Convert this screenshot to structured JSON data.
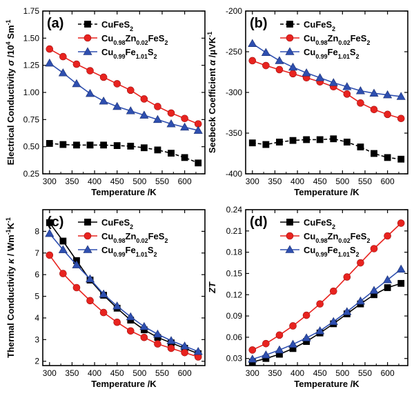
{
  "figure": {
    "xlabel": "Temperature /K",
    "legend_labels": [
      {
        "main": "CuFeS",
        "sub": "2",
        "tail": ""
      },
      {
        "parts": [
          {
            "t": "Cu"
          },
          {
            "t": "0.98",
            "sub": true
          },
          {
            "t": "Zn"
          },
          {
            "t": "0.02",
            "sub": true
          },
          {
            "t": "FeS"
          },
          {
            "t": "2",
            "sub": true
          }
        ]
      },
      {
        "parts": [
          {
            "t": "Cu"
          },
          {
            "t": "0.99",
            "sub": true
          },
          {
            "t": "Fe"
          },
          {
            "t": "1.01",
            "sub": true
          },
          {
            "t": "S"
          },
          {
            "t": "2",
            "sub": true
          }
        ]
      }
    ]
  },
  "chart_data": [
    {
      "type": "line",
      "panel_label": "(a)",
      "title": "",
      "xlabel": "Temperature /K",
      "ylabel_parts": [
        {
          "t": "Electrical Conductivity "
        },
        {
          "t": "σ",
          "italic": true
        },
        {
          "t": " /10"
        },
        {
          "t": "4",
          "sup": true
        },
        {
          "t": " Sm"
        },
        {
          "t": "-1",
          "sup": true
        }
      ],
      "xlim": [
        285,
        645
      ],
      "ylim": [
        0.25,
        1.75
      ],
      "xticks": [
        300,
        350,
        400,
        450,
        500,
        550,
        600,
        650
      ],
      "yticks": [
        0.25,
        0.5,
        0.75,
        1.0,
        1.25,
        1.5,
        1.75
      ],
      "ytick_labels": [
        "0.25",
        "0.50",
        "0.75",
        "1.00",
        "1.25",
        "1.50",
        "1.75"
      ],
      "x": [
        300,
        330,
        360,
        390,
        420,
        450,
        480,
        510,
        540,
        570,
        600,
        630
      ],
      "series": [
        {
          "name": "CuFeS2",
          "marker": "square",
          "color": "#000000",
          "dash": true,
          "values": [
            0.53,
            0.52,
            0.515,
            0.515,
            0.515,
            0.51,
            0.505,
            0.49,
            0.47,
            0.44,
            0.4,
            0.35
          ]
        },
        {
          "name": "Cu0.98Zn0.02FeS2",
          "marker": "circle",
          "color": "#e8231f",
          "dash": false,
          "values": [
            1.4,
            1.33,
            1.26,
            1.2,
            1.14,
            1.08,
            1.02,
            0.94,
            0.87,
            0.81,
            0.76,
            0.71
          ]
        },
        {
          "name": "Cu0.99Fe1.01S2",
          "marker": "triangle",
          "color": "#2e4fb0",
          "dash": false,
          "values": [
            1.27,
            1.18,
            1.08,
            0.99,
            0.92,
            0.87,
            0.83,
            0.79,
            0.75,
            0.71,
            0.68,
            0.65
          ]
        }
      ]
    },
    {
      "type": "line",
      "panel_label": "(b)",
      "title": "",
      "xlabel": "Temperature /K",
      "ylabel_parts": [
        {
          "t": "Seebeck Coefficient "
        },
        {
          "t": "α",
          "italic": true
        },
        {
          "t": " /μVK"
        },
        {
          "t": "-1",
          "sup": true
        }
      ],
      "xlim": [
        285,
        645
      ],
      "ylim": [
        -400,
        -200
      ],
      "xticks": [
        300,
        350,
        400,
        450,
        500,
        550,
        600,
        650
      ],
      "yticks": [
        -400,
        -350,
        -300,
        -250,
        -200
      ],
      "ytick_labels": [
        "-400",
        "-350",
        "-300",
        "-250",
        "-200"
      ],
      "x": [
        300,
        330,
        360,
        390,
        420,
        450,
        480,
        510,
        540,
        570,
        600,
        630
      ],
      "series": [
        {
          "name": "CuFeS2",
          "marker": "square",
          "color": "#000000",
          "dash": true,
          "values": [
            -362,
            -364,
            -361,
            -359,
            -358,
            -358,
            -357,
            -361,
            -367,
            -375,
            -380,
            -382
          ]
        },
        {
          "name": "Cu0.98Zn0.02FeS2",
          "marker": "circle",
          "color": "#e8231f",
          "dash": false,
          "values": [
            -261,
            -267,
            -272,
            -277,
            -282,
            -287,
            -293,
            -302,
            -313,
            -321,
            -327,
            -332
          ]
        },
        {
          "name": "Cu0.99Fe1.01S2",
          "marker": "triangle",
          "color": "#2e4fb0",
          "dash": false,
          "values": [
            -240,
            -251,
            -261,
            -269,
            -276,
            -282,
            -288,
            -293,
            -298,
            -301,
            -303,
            -305
          ]
        }
      ]
    },
    {
      "type": "line",
      "panel_label": "(c)",
      "title": "",
      "xlabel": "Temperature /K",
      "ylabel_parts": [
        {
          "t": "Thermal Conductivity "
        },
        {
          "t": "κ",
          "italic": true
        },
        {
          "t": " / Wm"
        },
        {
          "t": "-1",
          "sup": true
        },
        {
          "t": "K"
        },
        {
          "t": "-1",
          "sup": true
        }
      ],
      "xlim": [
        285,
        645
      ],
      "ylim": [
        1.8,
        9.0
      ],
      "xticks": [
        300,
        350,
        400,
        450,
        500,
        550,
        600,
        650
      ],
      "yticks": [
        2,
        3,
        4,
        5,
        6,
        7,
        8
      ],
      "ytick_labels": [
        "2",
        "3",
        "4",
        "5",
        "6",
        "7",
        "8"
      ],
      "x": [
        300,
        330,
        360,
        390,
        420,
        450,
        480,
        510,
        540,
        570,
        600,
        630
      ],
      "series": [
        {
          "name": "CuFeS2",
          "marker": "square",
          "color": "#000000",
          "dash": false,
          "values": [
            8.4,
            7.55,
            6.65,
            5.75,
            5.05,
            4.45,
            3.9,
            3.45,
            3.1,
            2.85,
            2.6,
            2.35
          ]
        },
        {
          "name": "Cu0.98Zn0.02FeS2",
          "marker": "circle",
          "color": "#e8231f",
          "dash": false,
          "values": [
            6.9,
            6.05,
            5.4,
            4.8,
            4.25,
            3.8,
            3.4,
            3.1,
            2.8,
            2.6,
            2.4,
            2.2
          ]
        },
        {
          "name": "Cu0.99Fe1.01S2",
          "marker": "triangle",
          "color": "#2e4fb0",
          "dash": false,
          "values": [
            7.9,
            7.15,
            6.45,
            5.8,
            5.1,
            4.55,
            4.05,
            3.6,
            3.25,
            2.95,
            2.7,
            2.45
          ]
        }
      ]
    },
    {
      "type": "line",
      "panel_label": "(d)",
      "title": "",
      "xlabel": "Temperature /K",
      "ylabel_parts": [
        {
          "t": "ZT",
          "italic": true
        }
      ],
      "xlim": [
        285,
        645
      ],
      "ylim": [
        0.02,
        0.24
      ],
      "xticks": [
        300,
        350,
        400,
        450,
        500,
        550,
        600,
        650
      ],
      "yticks": [
        0.03,
        0.06,
        0.09,
        0.12,
        0.15,
        0.18,
        0.21,
        0.24
      ],
      "ytick_labels": [
        "0.03",
        "0.06",
        "0.09",
        "0.12",
        "0.15",
        "0.18",
        "0.21",
        "0.24"
      ],
      "x": [
        300,
        330,
        360,
        390,
        420,
        450,
        480,
        510,
        540,
        570,
        600,
        630
      ],
      "series": [
        {
          "name": "CuFeS2",
          "marker": "square",
          "color": "#000000",
          "dash": false,
          "values": [
            0.025,
            0.03,
            0.036,
            0.044,
            0.054,
            0.066,
            0.079,
            0.093,
            0.107,
            0.12,
            0.13,
            0.136
          ]
        },
        {
          "name": "Cu0.98Zn0.02FeS2",
          "marker": "circle",
          "color": "#e8231f",
          "dash": false,
          "values": [
            0.042,
            0.051,
            0.063,
            0.076,
            0.091,
            0.107,
            0.125,
            0.145,
            0.165,
            0.185,
            0.203,
            0.221
          ]
        },
        {
          "name": "Cu0.99Fe1.01S2",
          "marker": "triangle",
          "color": "#2e4fb0",
          "dash": false,
          "values": [
            0.029,
            0.035,
            0.042,
            0.05,
            0.059,
            0.069,
            0.082,
            0.096,
            0.111,
            0.126,
            0.141,
            0.156
          ]
        }
      ]
    }
  ]
}
